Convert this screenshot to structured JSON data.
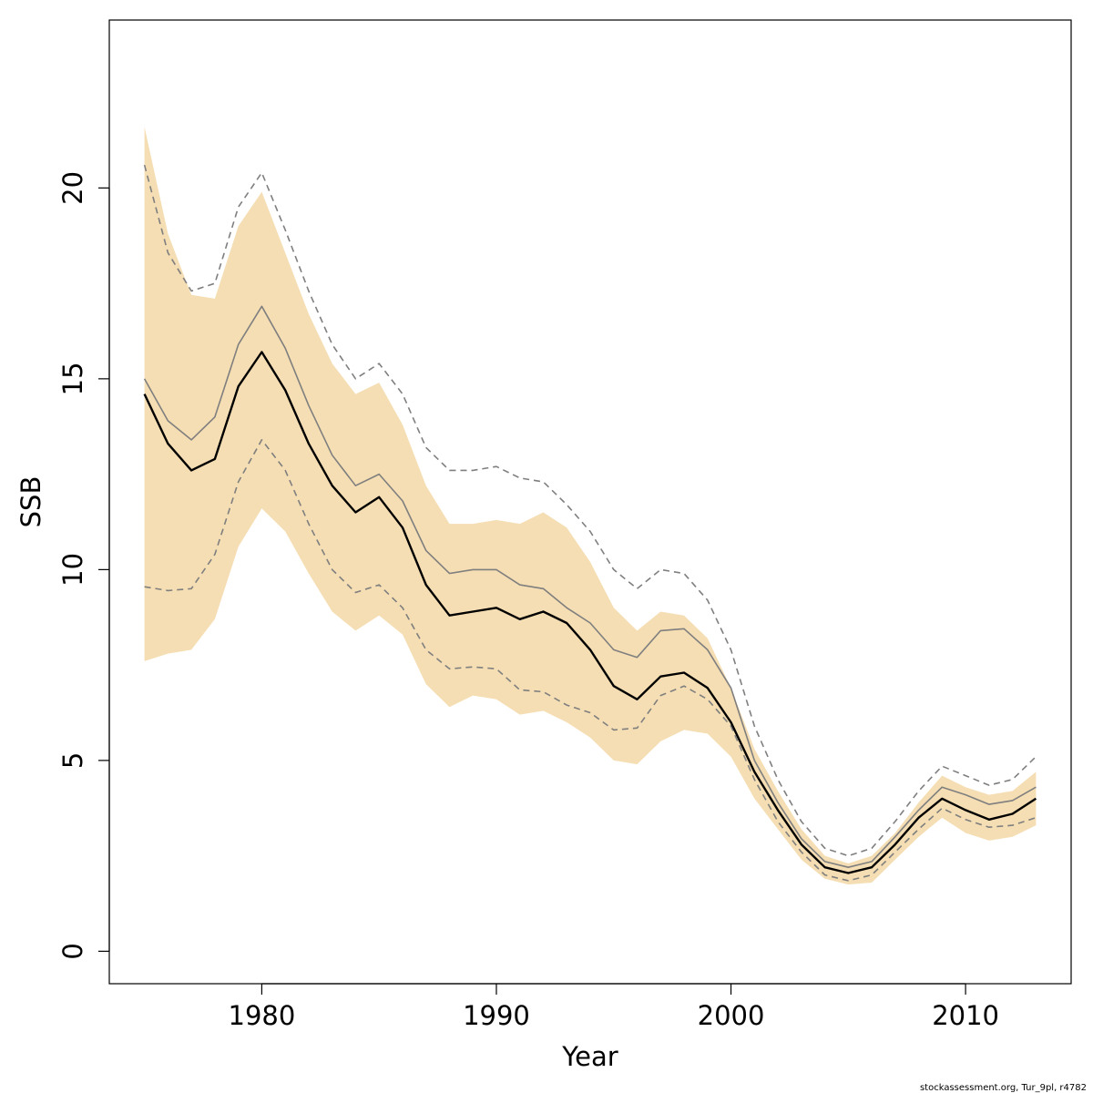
{
  "chart_data": {
    "type": "line",
    "title": "",
    "xlabel": "Year",
    "ylabel": "SSB",
    "xlim": [
      1973.5,
      2014.5
    ],
    "ylim": [
      -0.85,
      24.4
    ],
    "x_ticks": [
      1980,
      1990,
      2000,
      2010
    ],
    "y_ticks": [
      0,
      5,
      10,
      15,
      20
    ],
    "grid": false,
    "legend": "none",
    "x": [
      1975,
      1976,
      1977,
      1978,
      1979,
      1980,
      1981,
      1982,
      1983,
      1984,
      1985,
      1986,
      1987,
      1988,
      1989,
      1990,
      1991,
      1992,
      1993,
      1994,
      1995,
      1996,
      1997,
      1998,
      1999,
      2000,
      2001,
      2002,
      2003,
      2004,
      2005,
      2006,
      2007,
      2008,
      2009,
      2010,
      2011,
      2012,
      2013
    ],
    "band": {
      "color": "#F5DEB3",
      "upper": [
        21.6,
        18.8,
        17.2,
        17.1,
        19.0,
        19.9,
        18.3,
        16.7,
        15.4,
        14.6,
        14.9,
        13.8,
        12.2,
        11.2,
        11.2,
        11.3,
        11.2,
        11.5,
        11.1,
        10.2,
        9.0,
        8.4,
        8.9,
        8.8,
        8.2,
        6.9,
        5.3,
        4.2,
        3.2,
        2.5,
        2.3,
        2.5,
        3.1,
        3.9,
        4.6,
        4.3,
        4.1,
        4.2,
        4.7
      ],
      "lower": [
        7.6,
        7.8,
        7.9,
        8.7,
        10.6,
        11.6,
        11.0,
        9.9,
        8.9,
        8.4,
        8.8,
        8.3,
        7.0,
        6.4,
        6.7,
        6.6,
        6.2,
        6.3,
        6.0,
        5.6,
        5.0,
        4.9,
        5.5,
        5.8,
        5.7,
        5.1,
        4.0,
        3.2,
        2.4,
        1.9,
        1.75,
        1.8,
        2.4,
        3.0,
        3.5,
        3.1,
        2.9,
        3.0,
        3.3
      ]
    },
    "series": [
      {
        "values": [
          14.6,
          13.3,
          12.6,
          12.9,
          14.8,
          15.7,
          14.7,
          13.3,
          12.2,
          11.5,
          11.9,
          11.1,
          9.6,
          8.8,
          8.9,
          9.0,
          8.7,
          8.9,
          8.6,
          7.9,
          6.95,
          6.6,
          7.2,
          7.3,
          6.9,
          6.0,
          4.7,
          3.7,
          2.8,
          2.2,
          2.05,
          2.2,
          2.8,
          3.5,
          4.0,
          3.7,
          3.45,
          3.6,
          4.0
        ],
        "color": "#000000",
        "width": 2.4,
        "dash": ""
      },
      {
        "values": [
          15.0,
          13.9,
          13.4,
          14.0,
          15.9,
          16.9,
          15.8,
          14.3,
          13.0,
          12.2,
          12.5,
          11.8,
          10.5,
          9.9,
          10.0,
          10.0,
          9.6,
          9.5,
          9.0,
          8.6,
          7.9,
          7.7,
          8.4,
          8.45,
          7.9,
          6.9,
          5.0,
          3.9,
          2.95,
          2.35,
          2.2,
          2.35,
          3.0,
          3.7,
          4.3,
          4.1,
          3.85,
          3.95,
          4.3
        ],
        "color": "#7f7f7f",
        "width": 1.6,
        "dash": ""
      },
      {
        "values": [
          20.6,
          18.3,
          17.3,
          17.5,
          19.5,
          20.4,
          18.9,
          17.3,
          15.9,
          15.0,
          15.4,
          14.6,
          13.2,
          12.6,
          12.6,
          12.7,
          12.4,
          12.3,
          11.7,
          11.0,
          10.0,
          9.5,
          10.0,
          9.9,
          9.2,
          7.9,
          5.9,
          4.5,
          3.4,
          2.7,
          2.5,
          2.7,
          3.4,
          4.2,
          4.85,
          4.6,
          4.35,
          4.5,
          5.1
        ],
        "color": "#7f7f7f",
        "width": 1.6,
        "dash": "7,5"
      },
      {
        "values": [
          9.55,
          9.45,
          9.5,
          10.4,
          12.3,
          13.4,
          12.6,
          11.2,
          10.0,
          9.4,
          9.6,
          9.0,
          7.9,
          7.4,
          7.45,
          7.4,
          6.85,
          6.8,
          6.45,
          6.25,
          5.8,
          5.85,
          6.7,
          6.95,
          6.6,
          5.9,
          4.5,
          3.4,
          2.6,
          2.0,
          1.85,
          2.0,
          2.6,
          3.2,
          3.75,
          3.45,
          3.25,
          3.3,
          3.5
        ],
        "color": "#7f7f7f",
        "width": 1.6,
        "dash": "7,5"
      }
    ]
  },
  "footer_text": "stockassessment.org, Tur_9pl, r4782"
}
